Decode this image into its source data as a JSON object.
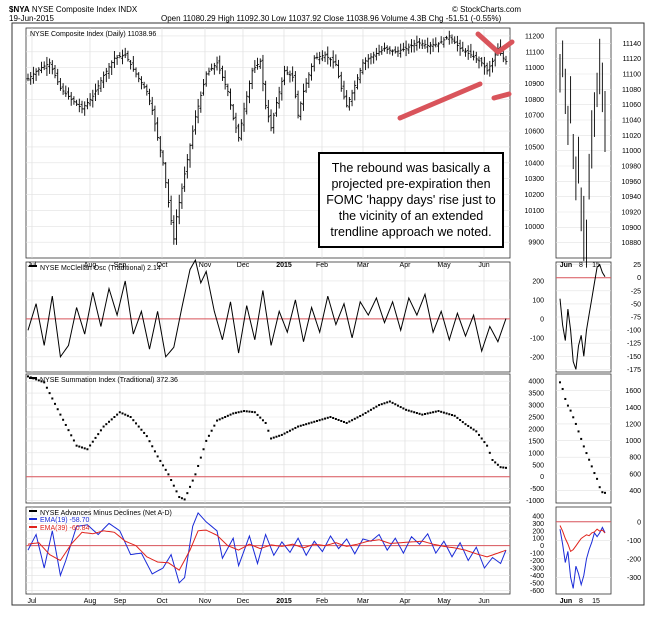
{
  "header": {
    "symbol": "$NYA",
    "name": "NYSE Composite Index",
    "exchange": "INDX",
    "date": "19-Jun-2015",
    "open_label": "Open",
    "open": "11080.29",
    "high_label": "High",
    "high": "11092.30",
    "low_label": "Low",
    "low": "11037.92",
    "close_label": "Close",
    "close": "11038.96",
    "volume_label": "Volume",
    "volume": "4.3B",
    "chg_label": "Chg",
    "chg": "-51.51 (-0.55%)",
    "watermark": "© StockCharts.com"
  },
  "callout": "The rebound was basically a projected pre-expiration then FOMC 'happy days' rise just to the vicinity of an extended trendline approach we noted.",
  "colors": {
    "zero_line": "#d9545b",
    "trendline": "#d9545b",
    "ema19": "#1a2bd8",
    "ema39": "#e0241d",
    "border": "#333333"
  },
  "chart_data": [
    {
      "type": "ohlc",
      "title": "NYSE Composite Index (Daily) 11038.96",
      "ylim": [
        9800,
        11250
      ],
      "y_ticks": [
        "11200",
        "11100",
        "11000",
        "10900",
        "10800",
        "10700",
        "10600",
        "10500",
        "10400",
        "10300",
        "10200",
        "10100",
        "10000",
        "9900"
      ],
      "x_labels": [
        "Jul",
        "Aug",
        "Sep",
        "Oct",
        "Nov",
        "Dec",
        "2015",
        "Feb",
        "Mar",
        "Apr",
        "May",
        "Jun"
      ],
      "close_path": [
        [
          0,
          10930
        ],
        [
          4,
          10990
        ],
        [
          8,
          11030
        ],
        [
          12,
          10870
        ],
        [
          16,
          10800
        ],
        [
          20,
          10740
        ],
        [
          24,
          10820
        ],
        [
          28,
          10950
        ],
        [
          32,
          11060
        ],
        [
          36,
          11080
        ],
        [
          40,
          10960
        ],
        [
          44,
          10850
        ],
        [
          46,
          10730
        ],
        [
          48,
          10560
        ],
        [
          50,
          10400
        ],
        [
          52,
          10150
        ],
        [
          54,
          9920
        ],
        [
          55,
          10060
        ],
        [
          58,
          10330
        ],
        [
          62,
          10690
        ],
        [
          66,
          10960
        ],
        [
          70,
          11030
        ],
        [
          74,
          10850
        ],
        [
          76,
          10680
        ],
        [
          78,
          10560
        ],
        [
          80,
          10740
        ],
        [
          83,
          10980
        ],
        [
          86,
          11040
        ],
        [
          88,
          10760
        ],
        [
          90,
          10620
        ],
        [
          92,
          10780
        ],
        [
          95,
          10980
        ],
        [
          98,
          10940
        ],
        [
          100,
          10700
        ],
        [
          102,
          10850
        ],
        [
          106,
          11060
        ],
        [
          110,
          11080
        ],
        [
          114,
          11020
        ],
        [
          116,
          10870
        ],
        [
          118,
          10760
        ],
        [
          120,
          10840
        ],
        [
          124,
          11030
        ],
        [
          128,
          11080
        ],
        [
          132,
          11120
        ],
        [
          136,
          11100
        ],
        [
          140,
          11120
        ],
        [
          144,
          11160
        ],
        [
          148,
          11140
        ],
        [
          152,
          11150
        ],
        [
          156,
          11200
        ],
        [
          160,
          11120
        ],
        [
          164,
          11080
        ],
        [
          168,
          11030
        ],
        [
          170,
          10980
        ],
        [
          172,
          11040
        ],
        [
          174,
          11120
        ],
        [
          176,
          11060
        ],
        [
          177,
          11039
        ]
      ],
      "insert_ylim": [
        10860,
        11160
      ],
      "insert_y_ticks": [
        "11140",
        "11120",
        "11100",
        "11080",
        "11060",
        "11040",
        "11020",
        "11000",
        "10980",
        "10960",
        "10940",
        "10920",
        "10900",
        "10880"
      ],
      "insert_x_labels": [
        "Jun",
        "8",
        "15"
      ],
      "insert_close": [
        11100,
        11120,
        11080,
        11030,
        11060,
        11000,
        10970,
        10990,
        10930,
        10900,
        10880,
        10960,
        11010,
        11050,
        11080,
        11110,
        11090,
        11040
      ]
    },
    {
      "type": "line",
      "title": "NYSE McClellan Osc (Traditional) 2.14",
      "ylim": [
        -280,
        300
      ],
      "y_ticks": [
        "200",
        "100",
        "0",
        "-100",
        "-200"
      ],
      "zero": 0,
      "points": [
        [
          0,
          -60
        ],
        [
          3,
          80
        ],
        [
          6,
          -140
        ],
        [
          9,
          120
        ],
        [
          12,
          -200
        ],
        [
          15,
          -140
        ],
        [
          18,
          60
        ],
        [
          21,
          -80
        ],
        [
          24,
          140
        ],
        [
          27,
          -40
        ],
        [
          30,
          160
        ],
        [
          33,
          20
        ],
        [
          36,
          200
        ],
        [
          39,
          -80
        ],
        [
          42,
          40
        ],
        [
          45,
          -160
        ],
        [
          48,
          40
        ],
        [
          51,
          -200
        ],
        [
          54,
          -150
        ],
        [
          57,
          60
        ],
        [
          60,
          260
        ],
        [
          62,
          310
        ],
        [
          64,
          190
        ],
        [
          66,
          250
        ],
        [
          69,
          40
        ],
        [
          72,
          -110
        ],
        [
          75,
          90
        ],
        [
          78,
          -180
        ],
        [
          81,
          70
        ],
        [
          84,
          -110
        ],
        [
          87,
          150
        ],
        [
          90,
          -140
        ],
        [
          93,
          40
        ],
        [
          96,
          -70
        ],
        [
          99,
          100
        ],
        [
          102,
          -120
        ],
        [
          105,
          60
        ],
        [
          108,
          -70
        ],
        [
          111,
          120
        ],
        [
          114,
          -30
        ],
        [
          117,
          80
        ],
        [
          120,
          -100
        ],
        [
          123,
          90
        ],
        [
          126,
          20
        ],
        [
          129,
          110
        ],
        [
          132,
          -20
        ],
        [
          135,
          90
        ],
        [
          138,
          -60
        ],
        [
          141,
          110
        ],
        [
          144,
          20
        ],
        [
          147,
          130
        ],
        [
          150,
          -70
        ],
        [
          153,
          40
        ],
        [
          156,
          -110
        ],
        [
          159,
          30
        ],
        [
          162,
          -90
        ],
        [
          165,
          20
        ],
        [
          168,
          -170
        ],
        [
          171,
          -40
        ],
        [
          174,
          -120
        ],
        [
          177,
          2
        ]
      ],
      "insert_ylim": [
        -180,
        30
      ],
      "insert_y_ticks": [
        "25",
        "0",
        "-25",
        "-50",
        "-75",
        "-100",
        "-125",
        "-150",
        "-175"
      ],
      "insert_values": [
        -40,
        -90,
        -120,
        -60,
        -100,
        -160,
        -175,
        -130,
        -110,
        -150,
        -100,
        -70,
        -40,
        -10,
        20,
        25,
        10,
        2
      ]
    },
    {
      "type": "scatter",
      "title": "NYSE Summation Index (Traditional) 372.36",
      "ylim": [
        -1100,
        4300
      ],
      "y_ticks": [
        "4000",
        "3500",
        "3000",
        "2500",
        "2000",
        "1500",
        "1000",
        "500",
        "0",
        "-500",
        "-1000"
      ],
      "zero": 0,
      "path": [
        [
          0,
          4200
        ],
        [
          6,
          3950
        ],
        [
          12,
          2600
        ],
        [
          18,
          1300
        ],
        [
          22,
          1150
        ],
        [
          28,
          2100
        ],
        [
          34,
          2700
        ],
        [
          38,
          2500
        ],
        [
          44,
          1700
        ],
        [
          48,
          850
        ],
        [
          52,
          100
        ],
        [
          56,
          -850
        ],
        [
          58,
          -950
        ],
        [
          62,
          100
        ],
        [
          66,
          1500
        ],
        [
          70,
          2350
        ],
        [
          76,
          2650
        ],
        [
          80,
          2750
        ],
        [
          84,
          2700
        ],
        [
          88,
          2250
        ],
        [
          90,
          1600
        ],
        [
          94,
          1750
        ],
        [
          100,
          2100
        ],
        [
          106,
          2300
        ],
        [
          112,
          2500
        ],
        [
          118,
          2250
        ],
        [
          124,
          2600
        ],
        [
          130,
          3000
        ],
        [
          134,
          3150
        ],
        [
          140,
          2800
        ],
        [
          146,
          2600
        ],
        [
          152,
          2750
        ],
        [
          158,
          2550
        ],
        [
          162,
          2200
        ],
        [
          166,
          1900
        ],
        [
          170,
          1300
        ],
        [
          172,
          700
        ],
        [
          175,
          400
        ],
        [
          177,
          372
        ]
      ],
      "insert_ylim": [
        250,
        1800
      ],
      "insert_y_ticks": [
        "1600",
        "1400",
        "1200",
        "1000",
        "800",
        "600",
        "400"
      ],
      "insert_values": [
        1700,
        1620,
        1500,
        1420,
        1360,
        1280,
        1200,
        1110,
        1020,
        930,
        850,
        770,
        690,
        610,
        540,
        440,
        380,
        372
      ]
    },
    {
      "type": "line",
      "title": "NYSE Advances Minus Declines (Net A-D)",
      "ylim": [
        -650,
        520
      ],
      "y_ticks": [
        "400",
        "300",
        "200",
        "100",
        "0",
        "-100",
        "-200",
        "-300",
        "-400",
        "-500",
        "-600"
      ],
      "zero": 0,
      "series": [
        {
          "name": "EMA(19) -58.70",
          "color": "#1a2bd8",
          "points": [
            [
              0,
              -60
            ],
            [
              3,
              150
            ],
            [
              6,
              -300
            ],
            [
              9,
              200
            ],
            [
              12,
              -400
            ],
            [
              14,
              -200
            ],
            [
              18,
              260
            ],
            [
              22,
              280
            ],
            [
              26,
              150
            ],
            [
              30,
              300
            ],
            [
              34,
              200
            ],
            [
              38,
              -120
            ],
            [
              42,
              -100
            ],
            [
              46,
              -380
            ],
            [
              50,
              -300
            ],
            [
              53,
              -120
            ],
            [
              56,
              -500
            ],
            [
              58,
              -430
            ],
            [
              61,
              260
            ],
            [
              63,
              440
            ],
            [
              66,
              320
            ],
            [
              70,
              200
            ],
            [
              72,
              -170
            ],
            [
              76,
              100
            ],
            [
              78,
              -270
            ],
            [
              82,
              130
            ],
            [
              85,
              -240
            ],
            [
              88,
              150
            ],
            [
              91,
              -130
            ],
            [
              94,
              50
            ],
            [
              97,
              -90
            ],
            [
              100,
              100
            ],
            [
              103,
              -130
            ],
            [
              106,
              60
            ],
            [
              109,
              -80
            ],
            [
              112,
              130
            ],
            [
              115,
              -40
            ],
            [
              118,
              90
            ],
            [
              121,
              -110
            ],
            [
              124,
              90
            ],
            [
              127,
              60
            ],
            [
              130,
              150
            ],
            [
              133,
              -60
            ],
            [
              136,
              100
            ],
            [
              139,
              -100
            ],
            [
              142,
              120
            ],
            [
              145,
              20
            ],
            [
              148,
              160
            ],
            [
              151,
              -100
            ],
            [
              154,
              60
            ],
            [
              157,
              -150
            ],
            [
              160,
              40
            ],
            [
              163,
              -200
            ],
            [
              166,
              -20
            ],
            [
              169,
              -300
            ],
            [
              172,
              -160
            ],
            [
              175,
              -240
            ],
            [
              177,
              -59
            ]
          ]
        },
        {
          "name": "EMA(39) -60.84",
          "color": "#e0241d",
          "points": [
            [
              0,
              20
            ],
            [
              4,
              40
            ],
            [
              8,
              -120
            ],
            [
              12,
              -200
            ],
            [
              16,
              20
            ],
            [
              20,
              180
            ],
            [
              24,
              160
            ],
            [
              28,
              200
            ],
            [
              32,
              180
            ],
            [
              36,
              60
            ],
            [
              40,
              0
            ],
            [
              44,
              -150
            ],
            [
              48,
              -220
            ],
            [
              52,
              -230
            ],
            [
              56,
              -330
            ],
            [
              60,
              -60
            ],
            [
              63,
              200
            ],
            [
              66,
              210
            ],
            [
              70,
              140
            ],
            [
              74,
              0
            ],
            [
              78,
              -60
            ],
            [
              82,
              20
            ],
            [
              86,
              -40
            ],
            [
              90,
              10
            ],
            [
              94,
              -10
            ],
            [
              98,
              20
            ],
            [
              102,
              -30
            ],
            [
              106,
              20
            ],
            [
              110,
              0
            ],
            [
              114,
              40
            ],
            [
              118,
              -10
            ],
            [
              122,
              20
            ],
            [
              126,
              60
            ],
            [
              130,
              80
            ],
            [
              134,
              30
            ],
            [
              138,
              40
            ],
            [
              142,
              50
            ],
            [
              146,
              60
            ],
            [
              150,
              20
            ],
            [
              154,
              -10
            ],
            [
              158,
              -30
            ],
            [
              162,
              -60
            ],
            [
              166,
              -110
            ],
            [
              170,
              -150
            ],
            [
              174,
              -100
            ],
            [
              177,
              -61
            ]
          ]
        }
      ],
      "insert_ylim": [
        -390,
        80
      ],
      "insert_y_ticks": [
        "0",
        "-100",
        "-200",
        "-300"
      ],
      "insert_values_ema19": [
        -40,
        -120,
        -220,
        -160,
        -300,
        -360,
        -240,
        -280,
        -340,
        -290,
        -200,
        -150,
        -110,
        -60,
        -80,
        -60,
        -30,
        -59
      ],
      "insert_values_ema39": [
        -20,
        -50,
        -90,
        -120,
        -160,
        -150,
        -130,
        -110,
        -90,
        -80,
        -70,
        -75,
        -60,
        -55,
        -40,
        -50,
        -45,
        -61
      ]
    }
  ]
}
